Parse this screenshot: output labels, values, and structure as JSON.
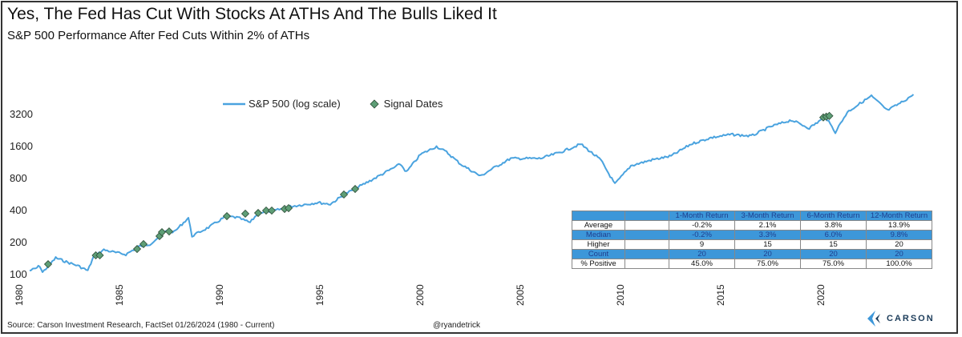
{
  "title": "Yes, The Fed Has Cut With Stocks At ATHs And The Bulls Liked It",
  "subtitle": "S&P 500 Performance After Fed Cuts Within 2% of ATHs",
  "footer": {
    "source": "Source: Carson Investment Research, FactSet 01/26/2024 (1980 - Current)",
    "handle": "@ryandetrick",
    "logo": "CARSON"
  },
  "colors": {
    "line": "#4aa3df",
    "marker": "#5e9e76",
    "table_blue": "#3d97d9"
  },
  "chart_data": {
    "type": "line",
    "yscale": "log",
    "ylim": [
      90,
      5500
    ],
    "xlim": [
      1980,
      2024.3
    ],
    "yticks": [
      100,
      200,
      400,
      800,
      1600,
      3200
    ],
    "xticks": [
      1980,
      1985,
      1990,
      1995,
      2000,
      2005,
      2010,
      2015,
      2020
    ],
    "legend": {
      "position": "top-center",
      "entries": [
        "S&P 500 (log scale)",
        "Signal Dates"
      ]
    },
    "series": [
      {
        "name": "S&P 500 (log scale)",
        "points": [
          [
            1980.0,
            107
          ],
          [
            1980.3,
            112
          ],
          [
            1980.5,
            119
          ],
          [
            1980.64,
            103
          ],
          [
            1981.3,
            141
          ],
          [
            1981.9,
            128
          ],
          [
            1982.4,
            119
          ],
          [
            1982.9,
            107
          ],
          [
            1983.2,
            146
          ],
          [
            1983.7,
            168
          ],
          [
            1984.3,
            158
          ],
          [
            1984.8,
            152
          ],
          [
            1985.44,
            180
          ],
          [
            1986.0,
            190
          ],
          [
            1986.4,
            218
          ],
          [
            1986.9,
            259
          ],
          [
            1987.2,
            246
          ],
          [
            1987.92,
            336
          ],
          [
            1988.1,
            226
          ],
          [
            1989.0,
            278
          ],
          [
            1989.8,
            348
          ],
          [
            1990.4,
            336
          ],
          [
            1991.0,
            303
          ],
          [
            1991.4,
            373
          ],
          [
            1992.3,
            395
          ],
          [
            1993.0,
            429
          ],
          [
            1994.4,
            467
          ],
          [
            1995.0,
            451
          ],
          [
            1995.7,
            556
          ],
          [
            1997.2,
            787
          ],
          [
            1998.5,
            1074
          ],
          [
            1998.8,
            903
          ],
          [
            1999.5,
            1322
          ],
          [
            2000.3,
            1573
          ],
          [
            2000.8,
            1393
          ],
          [
            2001.5,
            1074
          ],
          [
            2002.5,
            828
          ],
          [
            2003.0,
            951
          ],
          [
            2004.0,
            1213
          ],
          [
            2005.5,
            1213
          ],
          [
            2006.5,
            1393
          ],
          [
            2007.5,
            1657
          ],
          [
            2008.5,
            1171
          ],
          [
            2009.2,
            696
          ],
          [
            2010.0,
            1037
          ],
          [
            2011.0,
            1171
          ],
          [
            2012.0,
            1277
          ],
          [
            2013.0,
            1657
          ],
          [
            2014.0,
            1903
          ],
          [
            2015.0,
            2039
          ],
          [
            2016.0,
            1970
          ],
          [
            2017.0,
            2425
          ],
          [
            2018.0,
            2786
          ],
          [
            2018.9,
            2342
          ],
          [
            2019.7,
            2986
          ],
          [
            2020.2,
            2148
          ],
          [
            2020.8,
            3313
          ],
          [
            2021.5,
            4078
          ],
          [
            2022.0,
            4685
          ],
          [
            2022.8,
            3430
          ],
          [
            2023.5,
            4078
          ],
          [
            2024.1,
            4850
          ]
        ]
      },
      {
        "name": "Signal Dates",
        "points": [
          [
            1980.92,
            123
          ],
          [
            1983.3,
            149
          ],
          [
            1983.5,
            149
          ],
          [
            1985.36,
            171
          ],
          [
            1985.68,
            190
          ],
          [
            1986.48,
            226
          ],
          [
            1986.6,
            246
          ],
          [
            1986.96,
            250
          ],
          [
            1989.84,
            348
          ],
          [
            1990.76,
            367
          ],
          [
            1991.4,
            373
          ],
          [
            1991.8,
            393
          ],
          [
            1992.08,
            393
          ],
          [
            1992.72,
            407
          ],
          [
            1992.92,
            414
          ],
          [
            1995.68,
            556
          ],
          [
            1996.24,
            627
          ],
          [
            2019.6,
            2950
          ],
          [
            2019.75,
            3000
          ],
          [
            2019.9,
            3050
          ]
        ]
      }
    ],
    "table": {
      "headers": [
        "",
        "",
        "1-Month Return",
        "3-Month Return",
        "6-Month Return",
        "12-Month Return"
      ],
      "rows": [
        {
          "label": "Average",
          "values": [
            "-0.2%",
            "2.1%",
            "3.8%",
            "13.9%"
          ]
        },
        {
          "label": "Median",
          "values": [
            "-0.2%",
            "3.3%",
            "6.0%",
            "9.8%"
          ]
        },
        {
          "label": "Higher",
          "values": [
            "9",
            "15",
            "15",
            "20"
          ]
        },
        {
          "label": "Count",
          "values": [
            "20",
            "20",
            "20",
            "20"
          ]
        },
        {
          "label": "% Positive",
          "values": [
            "45.0%",
            "75.0%",
            "75.0%",
            "100.0%"
          ]
        }
      ]
    }
  }
}
